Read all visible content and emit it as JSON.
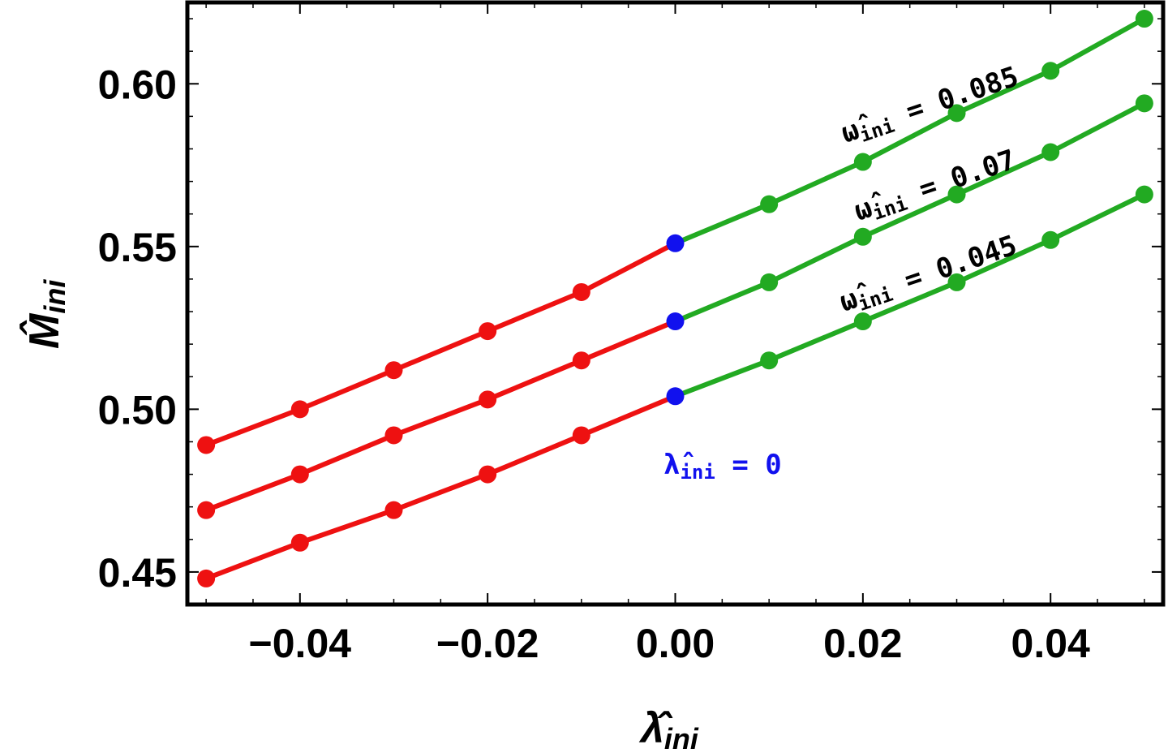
{
  "chart_data": {
    "type": "line",
    "xlabel": "λ̂ini",
    "ylabel": "M̂ini",
    "xlim": [
      -0.052,
      0.052
    ],
    "ylim": [
      0.44,
      0.625
    ],
    "x_ticks": [
      "−0.04",
      "−0.02",
      "0.00",
      "0.02",
      "0.04"
    ],
    "x_tick_values": [
      -0.04,
      -0.02,
      0.0,
      0.02,
      0.04
    ],
    "y_ticks": [
      "0.45",
      "0.50",
      "0.55",
      "0.60"
    ],
    "y_tick_values": [
      0.45,
      0.5,
      0.55,
      0.6
    ],
    "x": [
      -0.05,
      -0.04,
      -0.03,
      -0.02,
      -0.01,
      0.0,
      0.01,
      0.02,
      0.03,
      0.04,
      0.05
    ],
    "series": [
      {
        "label_base": "ω̂",
        "label_sub": "ini",
        "label_rest": " = 0.085",
        "values": [
          0.489,
          0.5,
          0.512,
          0.524,
          0.536,
          0.551,
          0.563,
          0.576,
          0.591,
          0.604,
          0.62
        ]
      },
      {
        "label_base": "ω̂",
        "label_sub": "ini",
        "label_rest": " = 0.07",
        "values": [
          0.469,
          0.48,
          0.492,
          0.503,
          0.515,
          0.527,
          0.539,
          0.553,
          0.566,
          0.579,
          0.594
        ]
      },
      {
        "label_base": "ω̂",
        "label_sub": "ini",
        "label_rest": " = 0.045",
        "values": [
          0.448,
          0.459,
          0.469,
          0.48,
          0.492,
          0.504,
          0.515,
          0.527,
          0.539,
          0.552,
          0.566
        ]
      }
    ],
    "colors": {
      "negative": "#ee1111",
      "zero": "#1111ee",
      "positive": "#22aa22",
      "frame": "#000000"
    },
    "annotation": {
      "base": "λ̂",
      "sub": "ini",
      "rest": " = 0"
    }
  }
}
